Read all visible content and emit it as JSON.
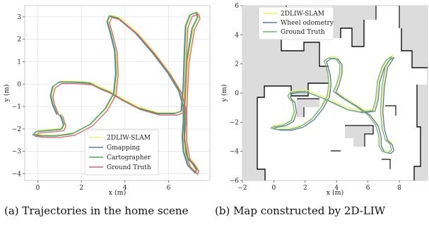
{
  "chart_data": [
    {
      "type": "line",
      "xlabel": "x (m)",
      "ylabel": "y (m)",
      "xlim": [
        -0.6,
        7.9
      ],
      "ylim": [
        -4.3,
        3.5
      ],
      "x_ticks": [
        "0",
        "2",
        "4",
        "6"
      ],
      "y_ticks": [
        "3",
        "2",
        "1",
        "0",
        "−1",
        "−2",
        "−3",
        "−4"
      ],
      "grid": true,
      "legend": "lower-center",
      "series": [
        {
          "name": "2DLIW-SLAM",
          "color": "#f5f067",
          "offset": [
            0.05,
            0.03
          ],
          "x": [
            1.05,
            1.2,
            1.1,
            0.6,
            -0.05,
            -0.2,
            0.2,
            0.9,
            1.6,
            2.4,
            3.1,
            3.5,
            3.6,
            3.55,
            3.35,
            3.2,
            3.3,
            3.7,
            4.5,
            5.3,
            6.0,
            6.5,
            6.7,
            6.7,
            6.65,
            6.7,
            6.9,
            7.25,
            7.3,
            7.1,
            6.9,
            6.75,
            6.75,
            6.85,
            7.1,
            7.35,
            7.3,
            7.0,
            6.8,
            6.75,
            6.7,
            6.6,
            6.3,
            5.5,
            4.6,
            3.9,
            3.3,
            2.8,
            2.4,
            2.0,
            1.5,
            1.0,
            0.7,
            0.6,
            0.7,
            0.9
          ],
          "y": [
            -1.35,
            -1.8,
            -2.0,
            -2.05,
            -2.1,
            -2.25,
            -2.3,
            -2.3,
            -2.2,
            -1.8,
            -1.1,
            -0.4,
            0.5,
            1.5,
            2.3,
            2.8,
            3.05,
            2.95,
            2.3,
            1.4,
            0.5,
            -0.3,
            -1.0,
            -1.7,
            -2.3,
            -3.0,
            -3.6,
            -3.95,
            -3.8,
            -3.5,
            -3.3,
            -2.5,
            -1.0,
            1.0,
            2.5,
            3.0,
            3.2,
            3.1,
            2.6,
            1.5,
            0.0,
            -1.2,
            -1.3,
            -1.3,
            -1.05,
            -0.7,
            -0.35,
            -0.15,
            0.05,
            0.08,
            0.1,
            0.1,
            -0.1,
            -0.5,
            -0.9,
            -1.35
          ]
        },
        {
          "name": "Gmapping",
          "color": "#5b78b8",
          "offset": [
            -0.03,
            -0.02
          ],
          "x": [
            1.05,
            1.2,
            1.1,
            0.6,
            -0.05,
            -0.2,
            0.2,
            0.9,
            1.6,
            2.4,
            3.1,
            3.5,
            3.6,
            3.55,
            3.35,
            3.2,
            3.3,
            3.7,
            4.5,
            5.3,
            6.0,
            6.5,
            6.7,
            6.7,
            6.65,
            6.7,
            6.9,
            7.25,
            7.3,
            7.1,
            6.9,
            6.75,
            6.75,
            6.85,
            7.1,
            7.35,
            7.3,
            7.0,
            6.8,
            6.75,
            6.7,
            6.6,
            6.3,
            5.5,
            4.6,
            3.9,
            3.3,
            2.8,
            2.4,
            2.0,
            1.5,
            1.0,
            0.7,
            0.6,
            0.7,
            0.9
          ],
          "y": [
            -1.35,
            -1.8,
            -2.0,
            -2.05,
            -2.1,
            -2.25,
            -2.3,
            -2.3,
            -2.2,
            -1.8,
            -1.1,
            -0.4,
            0.5,
            1.5,
            2.3,
            2.8,
            3.05,
            2.95,
            2.3,
            1.4,
            0.5,
            -0.3,
            -1.0,
            -1.7,
            -2.3,
            -3.0,
            -3.6,
            -3.95,
            -3.8,
            -3.5,
            -3.3,
            -2.5,
            -1.0,
            1.0,
            2.5,
            3.0,
            3.2,
            3.1,
            2.6,
            1.5,
            0.0,
            -1.2,
            -1.3,
            -1.3,
            -1.05,
            -0.7,
            -0.35,
            -0.15,
            0.05,
            0.08,
            0.1,
            0.1,
            -0.1,
            -0.5,
            -0.9,
            -1.35
          ]
        },
        {
          "name": "Cartographer",
          "color": "#4fb05a",
          "offset": [
            0.0,
            0.0
          ],
          "x": [
            1.05,
            1.2,
            1.1,
            0.6,
            -0.05,
            -0.2,
            0.2,
            0.9,
            1.6,
            2.4,
            3.1,
            3.5,
            3.6,
            3.55,
            3.35,
            3.2,
            3.3,
            3.7,
            4.5,
            5.3,
            6.0,
            6.5,
            6.7,
            6.7,
            6.65,
            6.7,
            6.9,
            7.25,
            7.3,
            7.1,
            6.9,
            6.75,
            6.75,
            6.85,
            7.1,
            7.35,
            7.3,
            7.0,
            6.8,
            6.75,
            6.7,
            6.6,
            6.3,
            5.5,
            4.6,
            3.9,
            3.3,
            2.8,
            2.4,
            2.0,
            1.5,
            1.0,
            0.7,
            0.6,
            0.7,
            0.9
          ],
          "y": [
            -1.35,
            -1.8,
            -2.0,
            -2.05,
            -2.1,
            -2.25,
            -2.3,
            -2.3,
            -2.2,
            -1.8,
            -1.1,
            -0.4,
            0.5,
            1.5,
            2.3,
            2.8,
            3.05,
            2.95,
            2.3,
            1.4,
            0.5,
            -0.3,
            -1.0,
            -1.7,
            -2.3,
            -3.0,
            -3.6,
            -3.95,
            -3.8,
            -3.5,
            -3.3,
            -2.5,
            -1.0,
            1.0,
            2.5,
            3.0,
            3.2,
            3.1,
            2.6,
            1.5,
            0.0,
            -1.2,
            -1.3,
            -1.3,
            -1.05,
            -0.7,
            -0.35,
            -0.15,
            0.05,
            0.08,
            0.1,
            0.1,
            -0.1,
            -0.5,
            -0.9,
            -1.35
          ]
        },
        {
          "name": "Ground Truth",
          "color": "#d9606b",
          "offset": [
            0.09,
            -0.08
          ],
          "x": [
            1.05,
            1.2,
            1.1,
            0.6,
            -0.05,
            -0.2,
            0.2,
            0.9,
            1.6,
            2.4,
            3.1,
            3.5,
            3.6,
            3.55,
            3.35,
            3.2,
            3.3,
            3.7,
            4.5,
            5.3,
            6.0,
            6.5,
            6.7,
            6.7,
            6.65,
            6.7,
            6.9,
            7.25,
            7.3,
            7.1,
            6.9,
            6.75,
            6.75,
            6.85,
            7.1,
            7.35,
            7.3,
            7.0,
            6.8,
            6.75,
            6.7,
            6.6,
            6.3,
            5.5,
            4.6,
            3.9,
            3.3,
            2.8,
            2.4,
            2.0,
            1.5,
            1.0,
            0.7,
            0.6,
            0.7,
            0.9
          ],
          "y": [
            -1.35,
            -1.8,
            -2.0,
            -2.05,
            -2.1,
            -2.25,
            -2.3,
            -2.3,
            -2.2,
            -1.8,
            -1.1,
            -0.4,
            0.5,
            1.5,
            2.3,
            2.8,
            3.05,
            2.95,
            2.3,
            1.4,
            0.5,
            -0.3,
            -1.0,
            -1.7,
            -2.3,
            -3.0,
            -3.6,
            -3.95,
            -3.8,
            -3.5,
            -3.3,
            -2.5,
            -1.0,
            1.0,
            2.5,
            3.0,
            3.2,
            3.1,
            2.6,
            1.5,
            0.0,
            -1.2,
            -1.3,
            -1.3,
            -1.05,
            -0.7,
            -0.35,
            -0.15,
            0.05,
            0.08,
            0.1,
            0.1,
            -0.1,
            -0.5,
            -0.9,
            -1.35
          ]
        }
      ]
    },
    {
      "type": "line",
      "xlabel": "x (m)",
      "ylabel": "y (m)",
      "xlim": [
        -2,
        9.8
      ],
      "ylim": [
        -6,
        6
      ],
      "x_ticks": [
        "−2",
        "0",
        "2",
        "4",
        "6",
        "8"
      ],
      "y_ticks": [
        "6",
        "4",
        "2",
        "0",
        "−2",
        "−4",
        "−6"
      ],
      "grid": false,
      "background": "occupancy-map",
      "legend": "upper-left",
      "series": [
        {
          "name": "2DLIW-SLAM",
          "color": "#f5f067",
          "offset": [
            0.1,
            0.1
          ],
          "x": [
            1.2,
            1.3,
            1.1,
            0.6,
            0.0,
            -0.2,
            0.3,
            1.0,
            1.7,
            2.4,
            3.0,
            3.4,
            3.5,
            3.45,
            3.3,
            3.2,
            3.5,
            3.9,
            4.2,
            4.2,
            4.0,
            3.8,
            4.3,
            5.2,
            6.0,
            6.5,
            6.7,
            6.7,
            6.9,
            7.3,
            7.5,
            7.4,
            7.1,
            6.9,
            6.8,
            6.9,
            7.1,
            7.4,
            7.5,
            7.2,
            6.9,
            6.6,
            6.5,
            6.3,
            5.5,
            4.6,
            3.8,
            3.1,
            2.5,
            2.0,
            1.4,
            1.0,
            0.9,
            1.0,
            1.2
          ],
          "y": [
            -0.6,
            -1.3,
            -1.9,
            -2.2,
            -2.3,
            -2.4,
            -2.5,
            -2.5,
            -2.3,
            -1.8,
            -1.0,
            -0.2,
            0.6,
            1.3,
            1.9,
            2.2,
            2.4,
            2.4,
            2.0,
            1.4,
            0.6,
            0.1,
            -0.3,
            -0.9,
            -1.5,
            -2.2,
            -3.0,
            -3.6,
            -4.0,
            -4.1,
            -3.9,
            -3.5,
            -3.2,
            -2.4,
            -1.2,
            0.5,
            1.8,
            2.3,
            2.5,
            2.3,
            1.8,
            0.8,
            -0.4,
            -1.2,
            -1.3,
            -1.1,
            -0.7,
            -0.35,
            -0.1,
            0.1,
            0.1,
            0.0,
            -0.2,
            -0.4,
            -0.6
          ]
        },
        {
          "name": "Wheel odometry",
          "color": "#5b78b8",
          "offset": [
            0.15,
            -0.05
          ],
          "x": [
            1.2,
            1.3,
            1.1,
            0.6,
            0.0,
            -0.2,
            0.3,
            1.0,
            1.7,
            2.4,
            3.0,
            3.4,
            3.5,
            3.45,
            3.3,
            3.2,
            3.5,
            3.9,
            4.2,
            4.2,
            4.0,
            3.8,
            4.3,
            5.2,
            6.0,
            6.5,
            6.7,
            6.7,
            6.9,
            7.3,
            7.5,
            7.4,
            7.1,
            6.9,
            6.8,
            6.9,
            7.1,
            7.4,
            7.5,
            7.2,
            6.9,
            6.6,
            6.5,
            6.3,
            5.5,
            4.6,
            3.8,
            3.1,
            2.5,
            2.0,
            1.4,
            1.0,
            0.9,
            1.0,
            1.2
          ],
          "y": [
            -0.6,
            -1.3,
            -1.9,
            -2.2,
            -2.3,
            -2.4,
            -2.5,
            -2.5,
            -2.3,
            -1.8,
            -1.0,
            -0.2,
            0.6,
            1.3,
            1.9,
            2.2,
            2.4,
            2.4,
            2.0,
            1.4,
            0.6,
            0.1,
            -0.3,
            -0.9,
            -1.5,
            -2.2,
            -3.0,
            -3.6,
            -4.0,
            -4.1,
            -3.9,
            -3.5,
            -3.2,
            -2.4,
            -1.2,
            0.5,
            1.8,
            2.3,
            2.5,
            2.3,
            1.8,
            0.8,
            -0.4,
            -1.2,
            -1.3,
            -1.1,
            -0.7,
            -0.35,
            -0.1,
            0.1,
            0.1,
            0.0,
            -0.2,
            -0.4,
            -0.6
          ]
        },
        {
          "name": "Ground Truth",
          "color": "#6cb870",
          "offset": [
            0.0,
            0.0
          ],
          "x": [
            1.2,
            1.3,
            1.1,
            0.6,
            0.0,
            -0.2,
            0.3,
            1.0,
            1.7,
            2.4,
            3.0,
            3.4,
            3.5,
            3.45,
            3.3,
            3.2,
            3.5,
            3.9,
            4.2,
            4.2,
            4.0,
            3.8,
            4.3,
            5.2,
            6.0,
            6.5,
            6.7,
            6.7,
            6.9,
            7.3,
            7.5,
            7.4,
            7.1,
            6.9,
            6.8,
            6.9,
            7.1,
            7.4,
            7.5,
            7.2,
            6.9,
            6.6,
            6.5,
            6.3,
            5.5,
            4.6,
            3.8,
            3.1,
            2.5,
            2.0,
            1.4,
            1.0,
            0.9,
            1.0,
            1.2
          ],
          "y": [
            -0.6,
            -1.3,
            -1.9,
            -2.2,
            -2.3,
            -2.4,
            -2.5,
            -2.5,
            -2.3,
            -1.8,
            -1.0,
            -0.2,
            0.6,
            1.3,
            1.9,
            2.2,
            2.4,
            2.4,
            2.0,
            1.4,
            0.6,
            0.1,
            -0.3,
            -0.9,
            -1.5,
            -2.2,
            -3.0,
            -3.6,
            -4.0,
            -4.1,
            -3.9,
            -3.5,
            -3.2,
            -2.4,
            -1.2,
            0.5,
            1.8,
            2.3,
            2.5,
            2.3,
            1.8,
            0.8,
            -0.4,
            -1.2,
            -1.3,
            -1.1,
            -0.7,
            -0.35,
            -0.1,
            0.1,
            0.1,
            0.0,
            -0.2,
            -0.4,
            -0.6
          ]
        }
      ]
    }
  ],
  "captions": {
    "a": "(a) Trajectories in the home scene",
    "b": "(b) Map constructed by 2D-LIW"
  }
}
